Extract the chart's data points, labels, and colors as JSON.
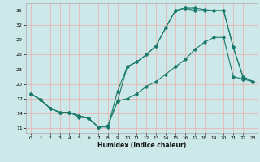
{
  "xlabel": "Humidex (Indice chaleur)",
  "bg_color": "#cce8e8",
  "line_color": "#1a7a6a",
  "grid_color": "#e8b4b4",
  "xlim": [
    -0.5,
    23.5
  ],
  "ylim": [
    10.0,
    36.5
  ],
  "yticks": [
    11,
    14,
    17,
    20,
    23,
    26,
    29,
    32,
    35
  ],
  "xticks": [
    0,
    1,
    2,
    3,
    4,
    5,
    6,
    7,
    8,
    9,
    10,
    11,
    12,
    13,
    14,
    15,
    16,
    17,
    18,
    19,
    20,
    21,
    22,
    23
  ],
  "line1_x": [
    0,
    1,
    2,
    3,
    4,
    5,
    6,
    7,
    8,
    9,
    10,
    11,
    12,
    13,
    14,
    15,
    16,
    17,
    18,
    19,
    20,
    21,
    22,
    23
  ],
  "line1_y": [
    18.0,
    16.8,
    15.0,
    14.2,
    14.2,
    13.2,
    13.0,
    11.2,
    11.2,
    18.5,
    23.5,
    24.5,
    26.0,
    27.8,
    31.5,
    35.0,
    35.5,
    35.0,
    35.0,
    35.0,
    35.0,
    27.5,
    21.5,
    20.5
  ],
  "line2_x": [
    0,
    1,
    2,
    3,
    4,
    5,
    6,
    7,
    8,
    9,
    10,
    11,
    12,
    13,
    14,
    15,
    16,
    17,
    18,
    19,
    20,
    21,
    22,
    23
  ],
  "line2_y": [
    18.0,
    16.8,
    15.0,
    14.2,
    14.2,
    13.5,
    13.0,
    11.2,
    11.5,
    16.5,
    23.5,
    24.5,
    26.0,
    27.8,
    31.5,
    35.0,
    35.5,
    35.5,
    35.2,
    35.0,
    35.0,
    27.5,
    21.5,
    20.5
  ],
  "line3_x": [
    0,
    1,
    2,
    3,
    4,
    5,
    6,
    7,
    8,
    9,
    10,
    11,
    12,
    13,
    14,
    15,
    16,
    17,
    18,
    19,
    20,
    21,
    22,
    23
  ],
  "line3_y": [
    18.0,
    16.8,
    15.0,
    14.2,
    14.2,
    13.5,
    13.0,
    11.2,
    11.5,
    16.5,
    17.0,
    18.0,
    19.5,
    20.5,
    22.0,
    23.5,
    25.0,
    27.0,
    28.5,
    29.5,
    29.5,
    21.5,
    21.0,
    20.5
  ]
}
